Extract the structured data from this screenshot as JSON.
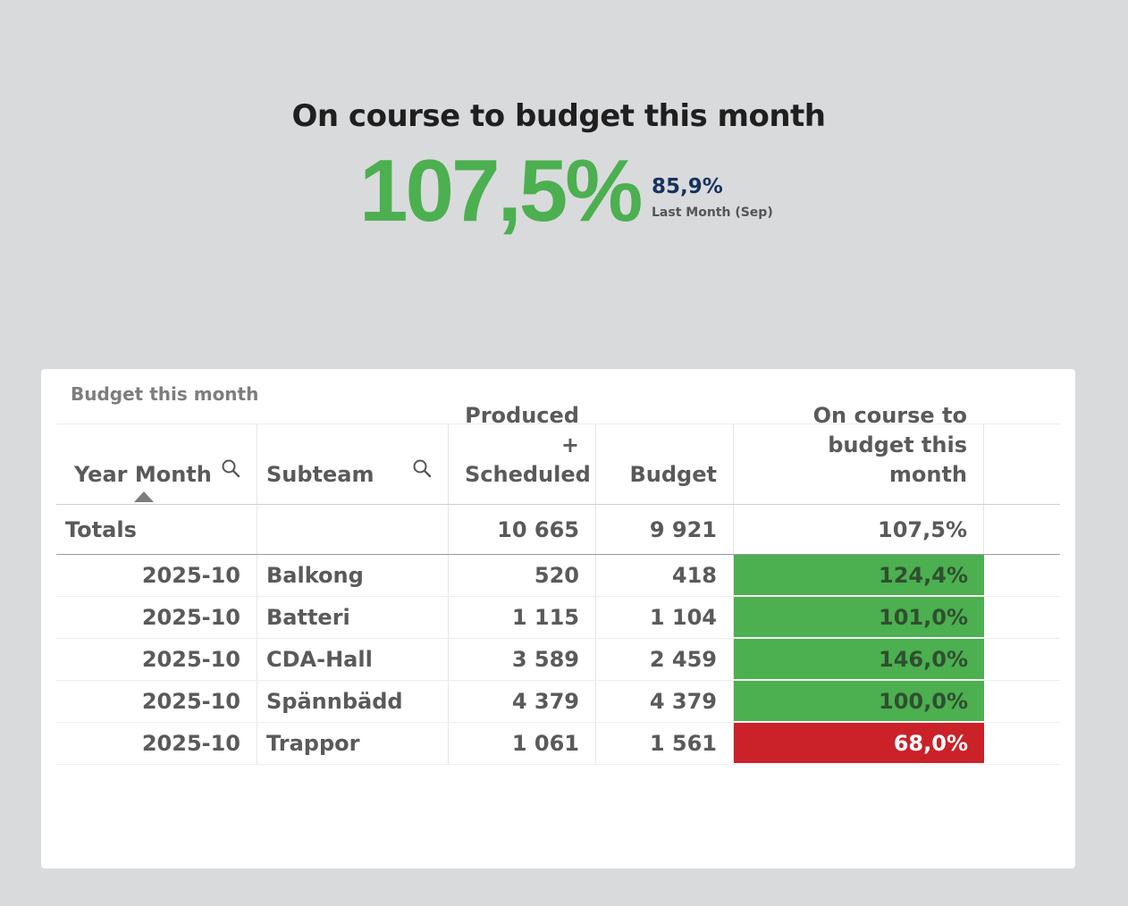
{
  "kpi": {
    "title": "On course to budget this month",
    "value": "107,5%",
    "previous_value": "85,9%",
    "previous_label": "Last Month (Sep)",
    "value_color": "#4caf50"
  },
  "table": {
    "title": "Budget this month",
    "columns": [
      "Year Month",
      "Subteam",
      "Produced + Scheduled",
      "Budget",
      "On course to budget this month"
    ],
    "sorted_column": "Year Month",
    "totals": {
      "label": "Totals",
      "produced": "10 665",
      "budget": "9 921",
      "on_course": "107,5%"
    },
    "rows": [
      {
        "year_month": "2025-10",
        "subteam": "Balkong",
        "produced": "520",
        "budget": "418",
        "on_course": "124,4%",
        "status": "good"
      },
      {
        "year_month": "2025-10",
        "subteam": "Batteri",
        "produced": "1 115",
        "budget": "1 104",
        "on_course": "101,0%",
        "status": "good"
      },
      {
        "year_month": "2025-10",
        "subteam": "CDA-Hall",
        "produced": "3 589",
        "budget": "2 459",
        "on_course": "146,0%",
        "status": "good"
      },
      {
        "year_month": "2025-10",
        "subteam": "Spännbädd",
        "produced": "4 379",
        "budget": "4 379",
        "on_course": "100,0%",
        "status": "good"
      },
      {
        "year_month": "2025-10",
        "subteam": "Trappor",
        "produced": "1 061",
        "budget": "1 561",
        "on_course": "68,0%",
        "status": "bad"
      }
    ],
    "status_colors": {
      "good": "#4caf50",
      "bad": "#cb2129"
    }
  }
}
